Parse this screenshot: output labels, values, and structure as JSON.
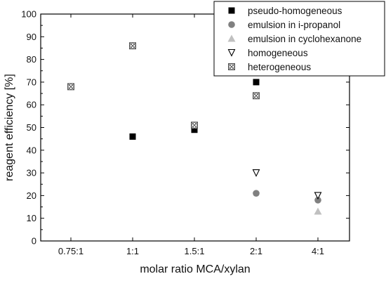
{
  "chart_data": {
    "type": "scatter",
    "xlabel": "molar ratio MCA/xylan",
    "ylabel": "reagent efficiency [%]",
    "categories": [
      "0.75:1",
      "1:1",
      "1.5:1",
      "2:1",
      "4:1"
    ],
    "ylim": [
      0,
      100
    ],
    "yticks": [
      0,
      10,
      20,
      30,
      40,
      50,
      60,
      70,
      80,
      90,
      100
    ],
    "grid": false,
    "legend_position": "top-right",
    "series": [
      {
        "name": "pseudo-homogeneous",
        "marker": "filled-square",
        "color": "#000000",
        "points": [
          {
            "x": "1:1",
            "y": 46
          },
          {
            "x": "1.5:1",
            "y": 49
          },
          {
            "x": "2:1",
            "y": 70
          }
        ]
      },
      {
        "name": "emulsion in i-propanol",
        "marker": "filled-circle",
        "color": "#808080",
        "points": [
          {
            "x": "2:1",
            "y": 21
          },
          {
            "x": "4:1",
            "y": 18
          }
        ]
      },
      {
        "name": "emulsion in cyclohexanone",
        "marker": "filled-triangle-up",
        "color": "#c0c0c0",
        "points": [
          {
            "x": "4:1",
            "y": 13
          }
        ]
      },
      {
        "name": "homogeneous",
        "marker": "open-triangle-down",
        "color": "#000000",
        "points": [
          {
            "x": "2:1",
            "y": 30
          },
          {
            "x": "4:1",
            "y": 20
          }
        ]
      },
      {
        "name": "heterogeneous",
        "marker": "crossed-square",
        "color": "#555555",
        "points": [
          {
            "x": "0.75:1",
            "y": 68
          },
          {
            "x": "1:1",
            "y": 86
          },
          {
            "x": "1.5:1",
            "y": 51
          },
          {
            "x": "2:1",
            "y": 64
          }
        ]
      }
    ]
  }
}
